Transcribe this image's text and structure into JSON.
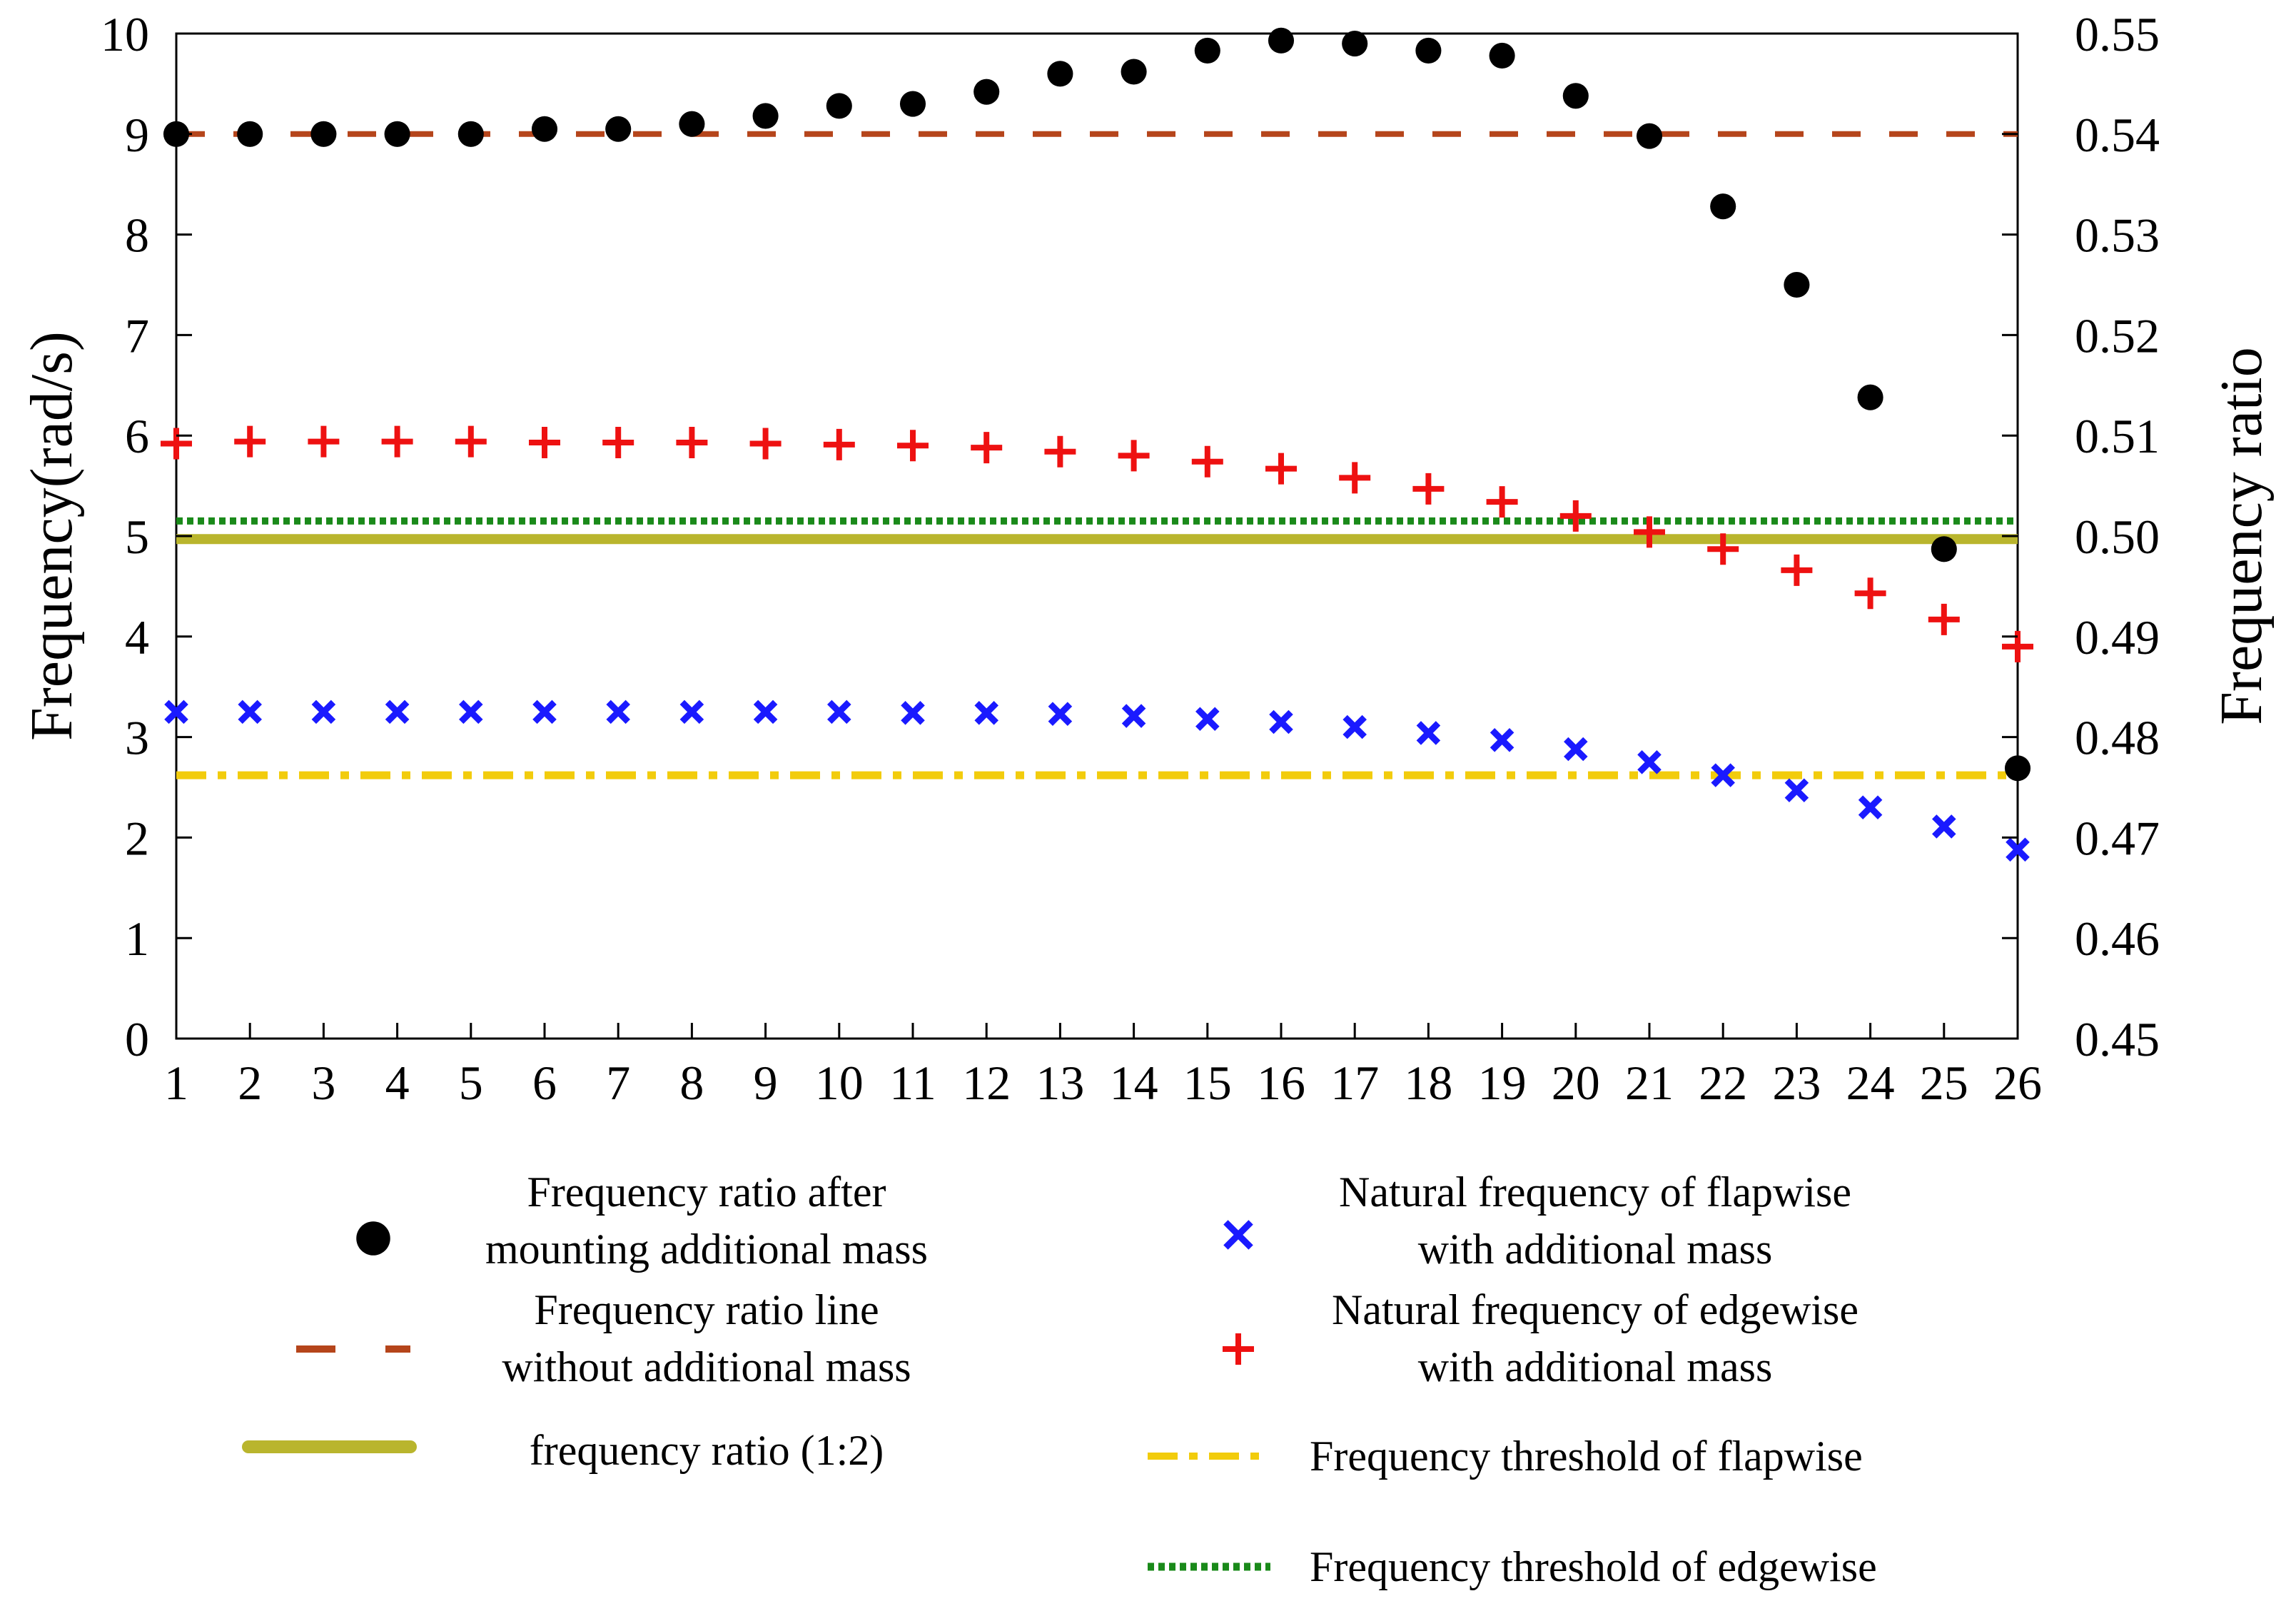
{
  "chart_data": {
    "type": "scatter",
    "x": [
      1,
      2,
      3,
      4,
      5,
      6,
      7,
      8,
      9,
      10,
      11,
      12,
      13,
      14,
      15,
      16,
      17,
      18,
      19,
      20,
      21,
      22,
      23,
      24,
      25,
      26
    ],
    "left_axis": {
      "label": "Frequency(rad/s)",
      "ylim": [
        0,
        10
      ],
      "ticks": [
        0,
        1,
        2,
        3,
        4,
        5,
        6,
        7,
        8,
        9,
        10
      ]
    },
    "right_axis": {
      "label": "Frequency ratio",
      "ylim": [
        0.45,
        0.55
      ],
      "ticks": [
        "0.45",
        "0.46",
        "0.47",
        "0.48",
        "0.49",
        "0.50",
        "0.51",
        "0.52",
        "0.53",
        "0.54",
        "0.55"
      ]
    },
    "x_ticks": [
      "1",
      "2",
      "3",
      "4",
      "5",
      "6",
      "7",
      "8",
      "9",
      "10",
      "11",
      "12",
      "13",
      "14",
      "15",
      "16",
      "17",
      "18",
      "19",
      "20",
      "21",
      "22",
      "23",
      "24",
      "25",
      "26"
    ],
    "series": [
      {
        "name": "Frequency ratio after mounting additional mass",
        "axis": "right",
        "marker": "dot",
        "color": "#000000",
        "values": [
          0.54,
          0.54,
          0.54,
          0.54,
          0.54,
          0.5405,
          0.5405,
          0.541,
          0.5418,
          0.5428,
          0.543,
          0.5442,
          0.546,
          0.5462,
          0.5483,
          0.5493,
          0.549,
          0.5483,
          0.5478,
          0.5438,
          0.5398,
          0.5328,
          0.525,
          0.5138,
          0.4987,
          0.4769
        ]
      },
      {
        "name": "Natural frequency of flapwise with additional mass",
        "axis": "left",
        "marker": "x",
        "color": "#1a1aff",
        "values": [
          3.25,
          3.25,
          3.25,
          3.25,
          3.25,
          3.25,
          3.25,
          3.25,
          3.25,
          3.25,
          3.24,
          3.24,
          3.23,
          3.21,
          3.18,
          3.15,
          3.1,
          3.04,
          2.97,
          2.88,
          2.75,
          2.62,
          2.47,
          2.3,
          2.11,
          1.88
        ]
      },
      {
        "name": "Natural frequency of edgewise with additional mass",
        "axis": "left",
        "marker": "plus",
        "color": "#ee1111",
        "values": [
          5.92,
          5.94,
          5.94,
          5.94,
          5.94,
          5.93,
          5.93,
          5.93,
          5.92,
          5.91,
          5.9,
          5.88,
          5.84,
          5.8,
          5.74,
          5.67,
          5.58,
          5.47,
          5.34,
          5.2,
          5.04,
          4.87,
          4.66,
          4.43,
          4.17,
          3.9
        ]
      }
    ],
    "lines": [
      {
        "name": "Frequency ratio line without additional mass",
        "axis": "right",
        "value": 0.54,
        "style": "dashed",
        "color": "#b5451b"
      },
      {
        "name": "frequency ratio (1:2)",
        "axis": "left",
        "value": 4.97,
        "style": "solid",
        "color": "#b9b52d"
      },
      {
        "name": "Frequency threshold of flapwise",
        "axis": "left",
        "value": 2.62,
        "style": "dashdot",
        "color": "#f2cc0c"
      },
      {
        "name": "Frequency threshold of edgewise",
        "axis": "left",
        "value": 5.15,
        "style": "dotted",
        "color": "#1a8a1a"
      }
    ],
    "legend": {
      "entries": [
        {
          "key": "ratio_dots",
          "lines": [
            "Frequency ratio after",
            "mounting additional mass"
          ]
        },
        {
          "key": "ratio_line",
          "lines": [
            "Frequency ratio line",
            "without additional mass"
          ]
        },
        {
          "key": "ratio_12",
          "lines": [
            "frequency ratio (1:2)"
          ]
        },
        {
          "key": "flap",
          "lines": [
            "Natural frequency of flapwise",
            "with additional mass"
          ]
        },
        {
          "key": "edge",
          "lines": [
            "Natural frequency of edgewise",
            "with additional mass"
          ]
        },
        {
          "key": "flap_thr",
          "lines": [
            "Frequency threshold of flapwise"
          ]
        },
        {
          "key": "edge_thr",
          "lines": [
            "Frequency threshold of edgewise"
          ]
        }
      ],
      "position": "below plot"
    }
  }
}
